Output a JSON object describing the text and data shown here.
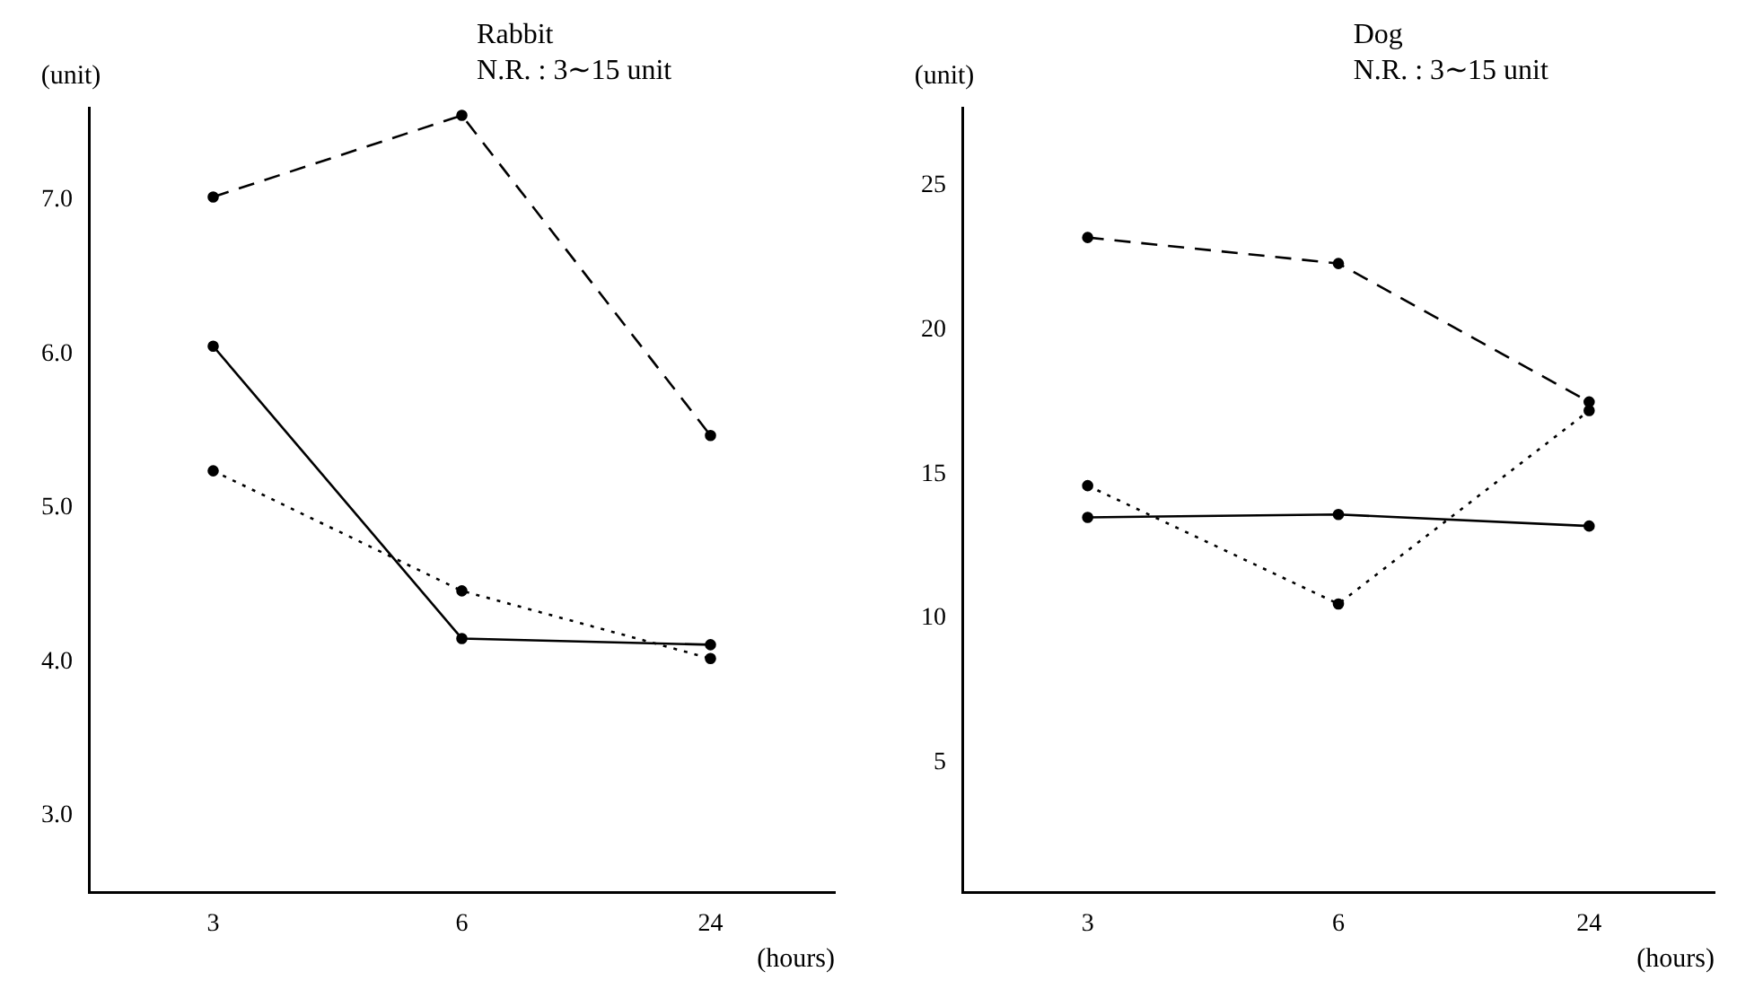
{
  "chart_data": [
    {
      "type": "line",
      "title": "Rabbit",
      "subtitle": "N.R. : 3∼15 unit",
      "ylabel": "(unit)",
      "xlabel": "(hours)",
      "categories": [
        "3",
        "6",
        "24"
      ],
      "series": [
        {
          "color": "#000000",
          "line_style": "dashed",
          "values": [
            7.02,
            7.55,
            5.47
          ]
        },
        {
          "color": "#000000",
          "line_style": "solid",
          "values": [
            6.05,
            4.15,
            4.11
          ]
        },
        {
          "color": "#000000",
          "line_style": "dotted",
          "values": [
            5.24,
            4.46,
            4.02
          ]
        }
      ],
      "ylim": [
        2.5,
        7.6
      ],
      "yticks": [
        {
          "value": 3,
          "label": "3.0"
        },
        {
          "value": 4,
          "label": "4.0"
        },
        {
          "value": 5,
          "label": "5.0"
        },
        {
          "value": 6,
          "label": "6.0"
        },
        {
          "value": 7,
          "label": "7.0"
        }
      ],
      "grid": false,
      "legend": false,
      "marker": "circle"
    },
    {
      "type": "line",
      "title": "Dog",
      "subtitle": "N.R. : 3∼15 unit",
      "ylabel": "(unit)",
      "xlabel": "(hours)",
      "categories": [
        "3",
        "6",
        "24"
      ],
      "series": [
        {
          "color": "#000000",
          "line_style": "dashed",
          "values": [
            23.2,
            22.3,
            17.5
          ]
        },
        {
          "color": "#000000",
          "line_style": "solid",
          "values": [
            13.5,
            13.6,
            13.2
          ]
        },
        {
          "color": "#000000",
          "line_style": "dotted",
          "values": [
            14.6,
            10.5,
            17.2
          ]
        }
      ],
      "ylim": [
        0.5,
        27.7
      ],
      "yticks": [
        5,
        10,
        15,
        20,
        25
      ],
      "grid": false,
      "legend": false,
      "marker": "circle"
    }
  ]
}
